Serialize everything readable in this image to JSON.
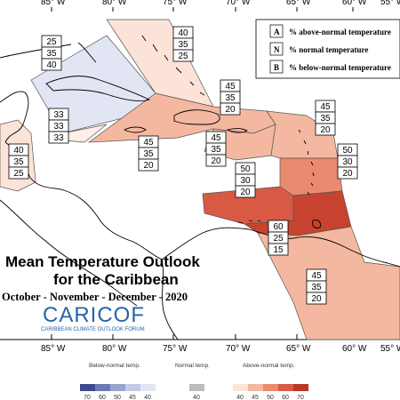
{
  "map": {
    "longitude_labels": [
      "85° W",
      "80° W",
      "75° W",
      "70° W",
      "65° W",
      "60° W",
      "55° W"
    ],
    "title_line1": "Mean Temperature Outlook",
    "title_line2": "for the Caribbean",
    "period": "October - November - December - 2020",
    "logo_text": "CARICOF",
    "logo_subtitle": "CARIBBEAN CLIMATE OUTLOOK FORUM",
    "key": [
      {
        "letter": "A",
        "text": "% above-normal temperature"
      },
      {
        "letter": "N",
        "text": "% normal temperature"
      },
      {
        "letter": "B",
        "text": "% below-normal temperature"
      }
    ],
    "probabilities": [
      {
        "id": "belize-mexico",
        "values": [
          "40",
          "35",
          "25"
        ]
      },
      {
        "id": "central-america-west",
        "values": [
          "33",
          "33",
          "33"
        ]
      },
      {
        "id": "cuba",
        "values": [
          "25",
          "35",
          "40"
        ]
      },
      {
        "id": "bahamas",
        "values": [
          "40",
          "35",
          "25"
        ]
      },
      {
        "id": "hispaniola-north",
        "values": [
          "45",
          "35",
          "20"
        ]
      },
      {
        "id": "jamaica",
        "values": [
          "45",
          "35",
          "20"
        ]
      },
      {
        "id": "puerto-rico",
        "values": [
          "45",
          "35",
          "20"
        ]
      },
      {
        "id": "lesser-antilles-north",
        "values": [
          "45",
          "35",
          "20"
        ]
      },
      {
        "id": "caribbean-sea-central",
        "values": [
          "50",
          "30",
          "20"
        ]
      },
      {
        "id": "windward-islands",
        "values": [
          "50",
          "30",
          "20"
        ]
      },
      {
        "id": "southern-caribbean",
        "values": [
          "60",
          "25",
          "15"
        ]
      },
      {
        "id": "guianas",
        "values": [
          "45",
          "35",
          "20"
        ]
      }
    ]
  },
  "legend": {
    "below_label": "Below-normal temp.",
    "normal_label": "Normal temp.",
    "above_label": "Above-normal temp.",
    "below_ticks": [
      "70",
      "60",
      "50",
      "45",
      "40"
    ],
    "normal_ticks": [
      "40"
    ],
    "above_ticks": [
      "40",
      "45",
      "50",
      "60",
      "70"
    ],
    "below_colors": [
      "#3b4a8c",
      "#6a78b4",
      "#98a3cf",
      "#c4cbe6",
      "#e2e6f4"
    ],
    "normal_color": "#bdbdbd",
    "above_colors": [
      "#fbe3d8",
      "#f4b8a0",
      "#ea8a6e",
      "#d85a44",
      "#b8362a"
    ]
  }
}
